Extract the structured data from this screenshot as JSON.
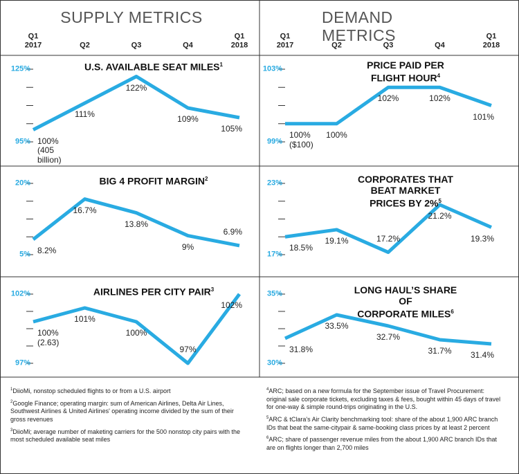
{
  "chart_data": [
    {
      "type": "line",
      "title": "SUPPLY METRICS",
      "categories": [
        "Q1\n2017",
        "Q2",
        "Q3",
        "Q4",
        "Q1\n2018"
      ],
      "charts": [
        {
          "title": "U.S. AVAILABLE SEAT MILES",
          "note": "1",
          "color": "#29abe2",
          "values": [
            100,
            111,
            122,
            109,
            105
          ],
          "value_labels": [
            "100%\n(405\nbillion)",
            "111%",
            "122%",
            "109%",
            "105%"
          ],
          "ylim": [
            95,
            125
          ],
          "yticks": [
            {
              "value": 95,
              "label": "95%"
            },
            {
              "value": 125,
              "label": "125%"
            }
          ]
        },
        {
          "title": "BIG 4 PROFIT MARGIN",
          "note": "2",
          "color": "#29abe2",
          "values": [
            8.2,
            16.7,
            13.8,
            9,
            6.9
          ],
          "value_labels": [
            "8.2%",
            "16.7%",
            "13.8%",
            "9%",
            "6.9%"
          ],
          "ylim": [
            5,
            20
          ],
          "yticks": [
            {
              "value": 5,
              "label": "5%"
            },
            {
              "value": 20,
              "label": "20%"
            }
          ]
        },
        {
          "title": "AIRLINES PER CITY PAIR",
          "note": "3",
          "color": "#29abe2",
          "values": [
            100,
            101,
            100,
            97,
            102
          ],
          "value_labels": [
            "100%\n(2.63)",
            "101%",
            "100%",
            "97%",
            "102%"
          ],
          "ylim": [
            97,
            102
          ],
          "yticks": [
            {
              "value": 97,
              "label": "97%"
            },
            {
              "value": 102,
              "label": "102%"
            }
          ]
        }
      ],
      "footnotes": [
        {
          "marker": "1",
          "text": "DiioMi, nonstop scheduled flights to or from a U.S. airport"
        },
        {
          "marker": "2",
          "text": "Google Finance; operating margin: sum of American Airlines, Delta Air Lines, Southwest Airlines & United Airlines' operating income divided by the sum of their gross revenues"
        },
        {
          "marker": "3",
          "text": "DiioMi; average number of maketing carriers for the 500 nonstop city pairs with the most scheduled available seat miles"
        }
      ]
    },
    {
      "type": "line",
      "title": "DEMAND METRICS",
      "categories": [
        "Q1\n2017",
        "Q2",
        "Q3",
        "Q4",
        "Q1\n2018"
      ],
      "charts": [
        {
          "title": "PRICE PAID PER FLIGHT HOUR",
          "note": "4",
          "color": "#29abe2",
          "values": [
            100,
            100,
            102,
            102,
            101
          ],
          "value_labels": [
            "100%\n($100)",
            "100%",
            "102%",
            "102%",
            "101%"
          ],
          "ylim": [
            99,
            103
          ],
          "yticks": [
            {
              "value": 99,
              "label": "99%"
            },
            {
              "value": 103,
              "label": "103%"
            }
          ]
        },
        {
          "title": "CORPORATES THAT BEAT MARKET\nPRICES BY 2%",
          "note": "5",
          "color": "#29abe2",
          "values": [
            18.5,
            19.1,
            17.2,
            21.2,
            19.3
          ],
          "value_labels": [
            "18.5%",
            "19.1%",
            "17.2%",
            "21.2%",
            "19.3%"
          ],
          "ylim": [
            17,
            23
          ],
          "yticks": [
            {
              "value": 17,
              "label": "17%"
            },
            {
              "value": 23,
              "label": "23%"
            }
          ]
        },
        {
          "title": "LONG HAUL’S SHARE OF\nCORPORATE MILES",
          "note": "6",
          "color": "#29abe2",
          "values": [
            31.8,
            33.5,
            32.7,
            31.7,
            31.4
          ],
          "value_labels": [
            "31.8%",
            "33.5%",
            "32.7%",
            "31.7%",
            "31.4%"
          ],
          "ylim": [
            30,
            35
          ],
          "yticks": [
            {
              "value": 30,
              "label": "30%"
            },
            {
              "value": 35,
              "label": "35%"
            }
          ]
        }
      ],
      "footnotes": [
        {
          "marker": "4",
          "text": "ARC; based on a new formula for the September issue of Travel Procurement: original sale corporate tickets, excluding taxes & fees, bought within 45 days of travel for one-way & simple round-trips originating in the U.S."
        },
        {
          "marker": "5",
          "text": "ARC & tClara's Air Clarity benchmarking tool: share of the about 1,900 ARC branch IDs that beat the same-citypair & same-booking class prices by at least 2 percent"
        },
        {
          "marker": "6",
          "text": "ARC; share of passenger revenue miles from the about 1,900 ARC branch IDs that are on flights longer than 2,700 miles"
        }
      ]
    }
  ]
}
